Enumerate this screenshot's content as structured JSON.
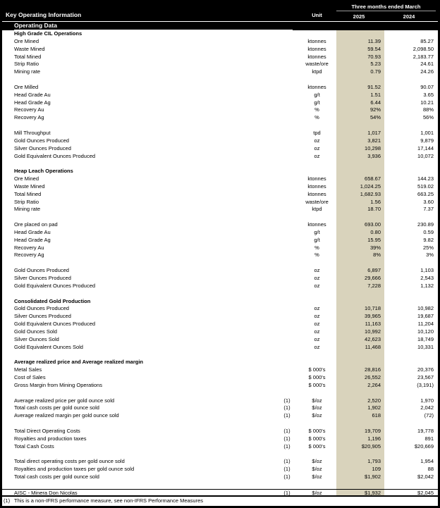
{
  "title": "Key Operating Information",
  "subtitle": "Operating Data",
  "columns": {
    "unit": "Unit",
    "period": "Three months ended March",
    "y2025": "2025",
    "y2024": "2024"
  },
  "colors": {
    "header_bg": "#000000",
    "header_text": "#ffffff",
    "highlight_2025_column": "#d9d3bc"
  },
  "rows": [
    {
      "type": "section",
      "label": "High Grade CIL Operations"
    },
    {
      "type": "data",
      "label": "Ore Mined",
      "fn": "",
      "unit": "ktonnes",
      "v2025": "11.39",
      "v2024": "85.27"
    },
    {
      "type": "data",
      "label": "Waste Mined",
      "fn": "",
      "unit": "ktonnes",
      "v2025": "59.54",
      "v2024": "2,098.50"
    },
    {
      "type": "data",
      "label": "Total Mined",
      "fn": "",
      "unit": "ktonnes",
      "v2025": "70.93",
      "v2024": "2,183.77"
    },
    {
      "type": "data",
      "label": "Strip Ratio",
      "fn": "",
      "unit": "waste/ore",
      "v2025": "5.23",
      "v2024": "24.61"
    },
    {
      "type": "data",
      "label": "Mining rate",
      "fn": "",
      "unit": "ktpd",
      "v2025": "0.79",
      "v2024": "24.26"
    },
    {
      "type": "blank"
    },
    {
      "type": "data",
      "label": "Ore Milled",
      "fn": "",
      "unit": "ktonnes",
      "v2025": "91.52",
      "v2024": "90.07"
    },
    {
      "type": "data",
      "label": "Head Grade Au",
      "fn": "",
      "unit": "g/t",
      "v2025": "1.51",
      "v2024": "3.65"
    },
    {
      "type": "data",
      "label": "Head Grade Ag",
      "fn": "",
      "unit": "g/t",
      "v2025": "6.44",
      "v2024": "10.21"
    },
    {
      "type": "data",
      "label": "Recovery Au",
      "fn": "",
      "unit": "%",
      "v2025": "92%",
      "v2024": "88%"
    },
    {
      "type": "data",
      "label": "Recovery Ag",
      "fn": "",
      "unit": "%",
      "v2025": "54%",
      "v2024": "56%"
    },
    {
      "type": "blank"
    },
    {
      "type": "data",
      "label": "Mill Throughput",
      "fn": "",
      "unit": "tpd",
      "v2025": "1,017",
      "v2024": "1,001"
    },
    {
      "type": "data",
      "label": "Gold Ounces Produced",
      "fn": "",
      "unit": "oz",
      "v2025": "3,821",
      "v2024": "9,879"
    },
    {
      "type": "data",
      "label": "Silver Ounces Produced",
      "fn": "",
      "unit": "oz",
      "v2025": "10,298",
      "v2024": "17,144"
    },
    {
      "type": "data",
      "label": "Gold Equivalent Ounces Produced",
      "fn": "",
      "unit": "oz",
      "v2025": "3,936",
      "v2024": "10,072"
    },
    {
      "type": "blank"
    },
    {
      "type": "section",
      "label": "Heap Leach Operations"
    },
    {
      "type": "data",
      "label": "Ore Mined",
      "fn": "",
      "unit": "ktonnes",
      "v2025": "658.67",
      "v2024": "144.23"
    },
    {
      "type": "data",
      "label": "Waste Mined",
      "fn": "",
      "unit": "ktonnes",
      "v2025": "1,024.25",
      "v2024": "519.02"
    },
    {
      "type": "data",
      "label": "Total Mined",
      "fn": "",
      "unit": "ktonnes",
      "v2025": "1,682.93",
      "v2024": "663.25"
    },
    {
      "type": "data",
      "label": "Strip Ratio",
      "fn": "",
      "unit": "waste/ore",
      "v2025": "1.56",
      "v2024": "3.60"
    },
    {
      "type": "data",
      "label": "Mining rate",
      "fn": "",
      "unit": "ktpd",
      "v2025": "18.70",
      "v2024": "7.37"
    },
    {
      "type": "blank"
    },
    {
      "type": "data",
      "label": "Ore placed on pad",
      "fn": "",
      "unit": "ktonnes",
      "v2025": "693.00",
      "v2024": "230.89"
    },
    {
      "type": "data",
      "label": "Head Grade Au",
      "fn": "",
      "unit": "g/t",
      "v2025": "0.80",
      "v2024": "0.59"
    },
    {
      "type": "data",
      "label": "Head Grade Ag",
      "fn": "",
      "unit": "g/t",
      "v2025": "15.95",
      "v2024": "9.82"
    },
    {
      "type": "data",
      "label": "Recovery Au",
      "fn": "",
      "unit": "%",
      "v2025": "39%",
      "v2024": "25%"
    },
    {
      "type": "data",
      "label": "Recovery Ag",
      "fn": "",
      "unit": "%",
      "v2025": "8%",
      "v2024": "3%"
    },
    {
      "type": "blank"
    },
    {
      "type": "data",
      "label": "Gold Ounces Produced",
      "fn": "",
      "unit": "oz",
      "v2025": "6,897",
      "v2024": "1,103"
    },
    {
      "type": "data",
      "label": "Silver Ounces Produced",
      "fn": "",
      "unit": "oz",
      "v2025": "29,666",
      "v2024": "2,543"
    },
    {
      "type": "data",
      "label": "Gold Equivalent Ounces Produced",
      "fn": "",
      "unit": "oz",
      "v2025": "7,228",
      "v2024": "1,132"
    },
    {
      "type": "blank"
    },
    {
      "type": "section",
      "label": "Consolidated Gold Production"
    },
    {
      "type": "data",
      "label": "Gold Ounces Produced",
      "fn": "",
      "unit": "oz",
      "v2025": "10,718",
      "v2024": "10,982"
    },
    {
      "type": "data",
      "label": "Silver Ounces Produced",
      "fn": "",
      "unit": "oz",
      "v2025": "39,965",
      "v2024": "19,687"
    },
    {
      "type": "data",
      "label": "Gold Equivalent Ounces Produced",
      "fn": "",
      "unit": "oz",
      "v2025": "11,163",
      "v2024": "11,204"
    },
    {
      "type": "data",
      "label": "Gold Ounces Sold",
      "fn": "",
      "unit": "oz",
      "v2025": "10,992",
      "v2024": "10,120"
    },
    {
      "type": "data",
      "label": "Silver Ounces Sold",
      "fn": "",
      "unit": "oz",
      "v2025": "42,623",
      "v2024": "18,749"
    },
    {
      "type": "data",
      "label": "Gold Equivalent Ounces Sold",
      "fn": "",
      "unit": "oz",
      "v2025": "11,468",
      "v2024": "10,331"
    },
    {
      "type": "blank"
    },
    {
      "type": "section",
      "label": "Average realized price and Average realized margin"
    },
    {
      "type": "data",
      "label": "Metal Sales",
      "fn": "",
      "unit": "$ 000's",
      "v2025": "28,816",
      "v2024": "20,376"
    },
    {
      "type": "data",
      "label": "Cost of Sales",
      "fn": "",
      "unit": "$ 000's",
      "v2025": "26,552",
      "v2024": "23,567"
    },
    {
      "type": "data",
      "label": "Gross Margin from Mining Operations",
      "fn": "",
      "unit": "$ 000's",
      "v2025": "2,264",
      "v2024": "(3,191)"
    },
    {
      "type": "blank"
    },
    {
      "type": "data",
      "label": "Average realized price per gold ounce sold",
      "fn": "(1)",
      "unit": "$/oz",
      "v2025": "2,520",
      "v2024": "1,970"
    },
    {
      "type": "data",
      "label": "Total cash costs per gold ounce sold",
      "fn": "(1)",
      "unit": "$/oz",
      "v2025": "1,902",
      "v2024": "2,042"
    },
    {
      "type": "data",
      "label": "Average realized margin per gold ounce sold",
      "fn": "(1)",
      "unit": "$/oz",
      "v2025": "618",
      "v2024": "(72)"
    },
    {
      "type": "blank"
    },
    {
      "type": "data",
      "label": "Total Direct Operating Costs",
      "fn": "(1)",
      "unit": "$ 000's",
      "v2025": "19,709",
      "v2024": "19,778"
    },
    {
      "type": "data",
      "label": "Royalties and production taxes",
      "fn": "(1)",
      "unit": "$ 000's",
      "v2025": "1,196",
      "v2024": "891"
    },
    {
      "type": "data",
      "label": "Total Cash Costs",
      "fn": "(1)",
      "unit": "$ 000's",
      "v2025": "$20,905",
      "v2024": "$20,669"
    },
    {
      "type": "blank"
    },
    {
      "type": "data",
      "label": "Total direct operating costs per gold ounce sold",
      "fn": "(1)",
      "unit": "$/oz",
      "v2025": "1,793",
      "v2024": "1,954"
    },
    {
      "type": "data",
      "label": "Royalties and production taxes per gold ounce sold",
      "fn": "(1)",
      "unit": "$/oz",
      "v2025": "109",
      "v2024": "88"
    },
    {
      "type": "data",
      "label": "Total cash costs per gold ounce sold",
      "fn": "(1)",
      "unit": "$/oz",
      "v2025": "$1,902",
      "v2024": "$2,042"
    },
    {
      "type": "blank"
    },
    {
      "type": "data",
      "label": "AISC - Minera Don Nicolas",
      "fn": "(1)",
      "unit": "$/oz",
      "v2025": "$1,932",
      "v2024": "$2,045",
      "ruled": true
    }
  ],
  "footnote": {
    "marker": "(1)",
    "text": "This is a non-IFRS performance measure, see non-IFRS Performance Measures"
  }
}
